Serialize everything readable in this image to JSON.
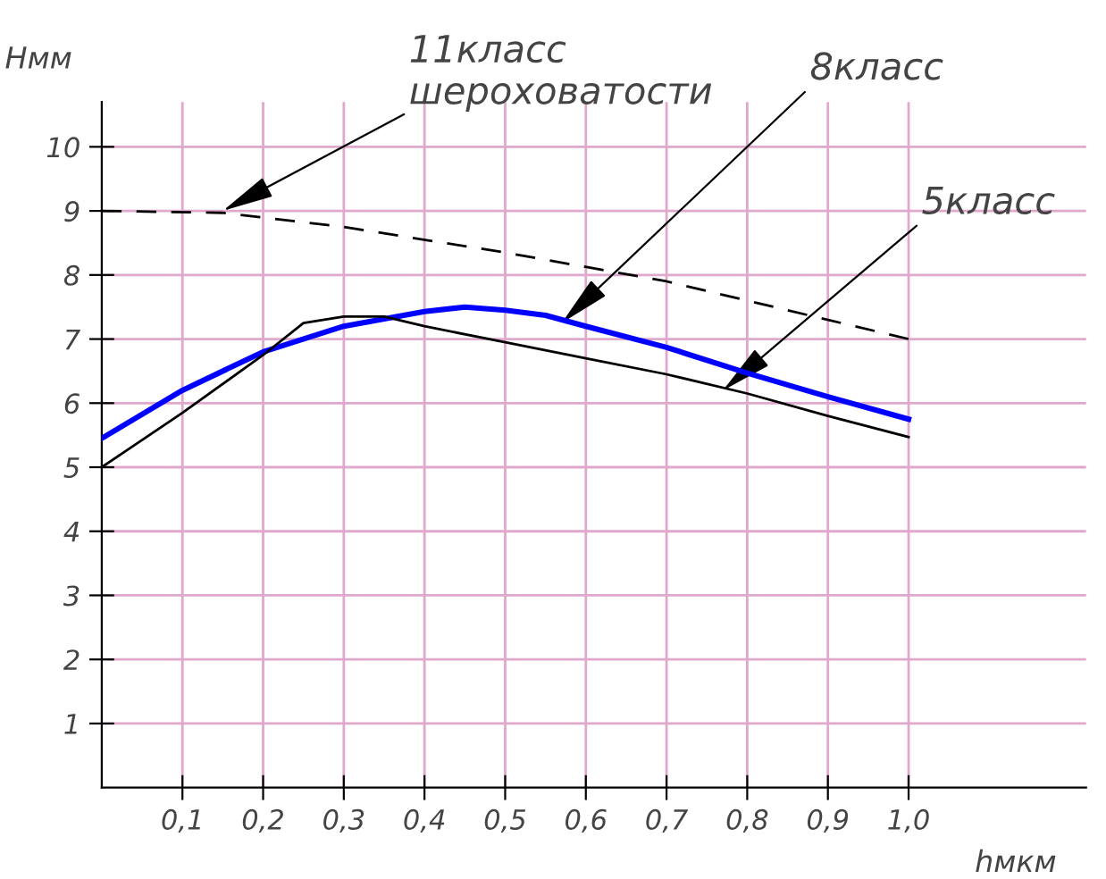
{
  "chart_data": {
    "type": "line",
    "xlabel": "hмкм",
    "ylabel": "Hмм",
    "xlim": [
      0,
      1.22
    ],
    "ylim": [
      0,
      10.7
    ],
    "xticks": [
      {
        "value": 0.1,
        "label": "0,1"
      },
      {
        "value": 0.2,
        "label": "0,2"
      },
      {
        "value": 0.3,
        "label": "0,3"
      },
      {
        "value": 0.4,
        "label": "0,4"
      },
      {
        "value": 0.5,
        "label": "0,5"
      },
      {
        "value": 0.6,
        "label": "0,6"
      },
      {
        "value": 0.7,
        "label": "0,7"
      },
      {
        "value": 0.8,
        "label": "0,8"
      },
      {
        "value": 0.9,
        "label": "0,9"
      },
      {
        "value": 1.0,
        "label": "1,0"
      }
    ],
    "yticks": [
      1,
      2,
      3,
      4,
      5,
      6,
      7,
      8,
      9,
      10
    ],
    "grid": true,
    "legend": false,
    "marker": "none",
    "series": [
      {
        "color": "#000000",
        "line_style": "dashed",
        "x": [
          0,
          0.15,
          0.3,
          0.5,
          0.7,
          0.8,
          1.0
        ],
        "values": [
          9,
          8.97,
          8.75,
          8.35,
          7.9,
          7.6,
          7.0
        ]
      },
      {
        "color": "#0000ff",
        "line_style": "solid",
        "x": [
          0,
          0.1,
          0.2,
          0.3,
          0.4,
          0.45,
          0.5,
          0.55,
          0.6,
          0.7,
          0.8,
          0.9,
          1.0
        ],
        "values": [
          5.45,
          6.2,
          6.8,
          7.2,
          7.43,
          7.5,
          7.45,
          7.37,
          7.2,
          6.87,
          6.47,
          6.1,
          5.75
        ]
      },
      {
        "color": "#000000",
        "line_style": "solid",
        "x": [
          0,
          0.1,
          0.2,
          0.25,
          0.3,
          0.35,
          0.4,
          0.5,
          0.6,
          0.7,
          0.8,
          0.9,
          1.0
        ],
        "values": [
          5.0,
          5.85,
          6.75,
          7.25,
          7.35,
          7.35,
          7.2,
          6.95,
          6.7,
          6.45,
          6.15,
          5.8,
          5.47
        ]
      }
    ],
    "annotations": [
      {
        "text": "11класс\nшероховатости",
        "x": 0.15,
        "y": 9
      },
      {
        "text": "8класс",
        "x": 0.57,
        "y": 7.25
      },
      {
        "text": "5класс",
        "x": 0.77,
        "y": 6.2
      }
    ]
  }
}
